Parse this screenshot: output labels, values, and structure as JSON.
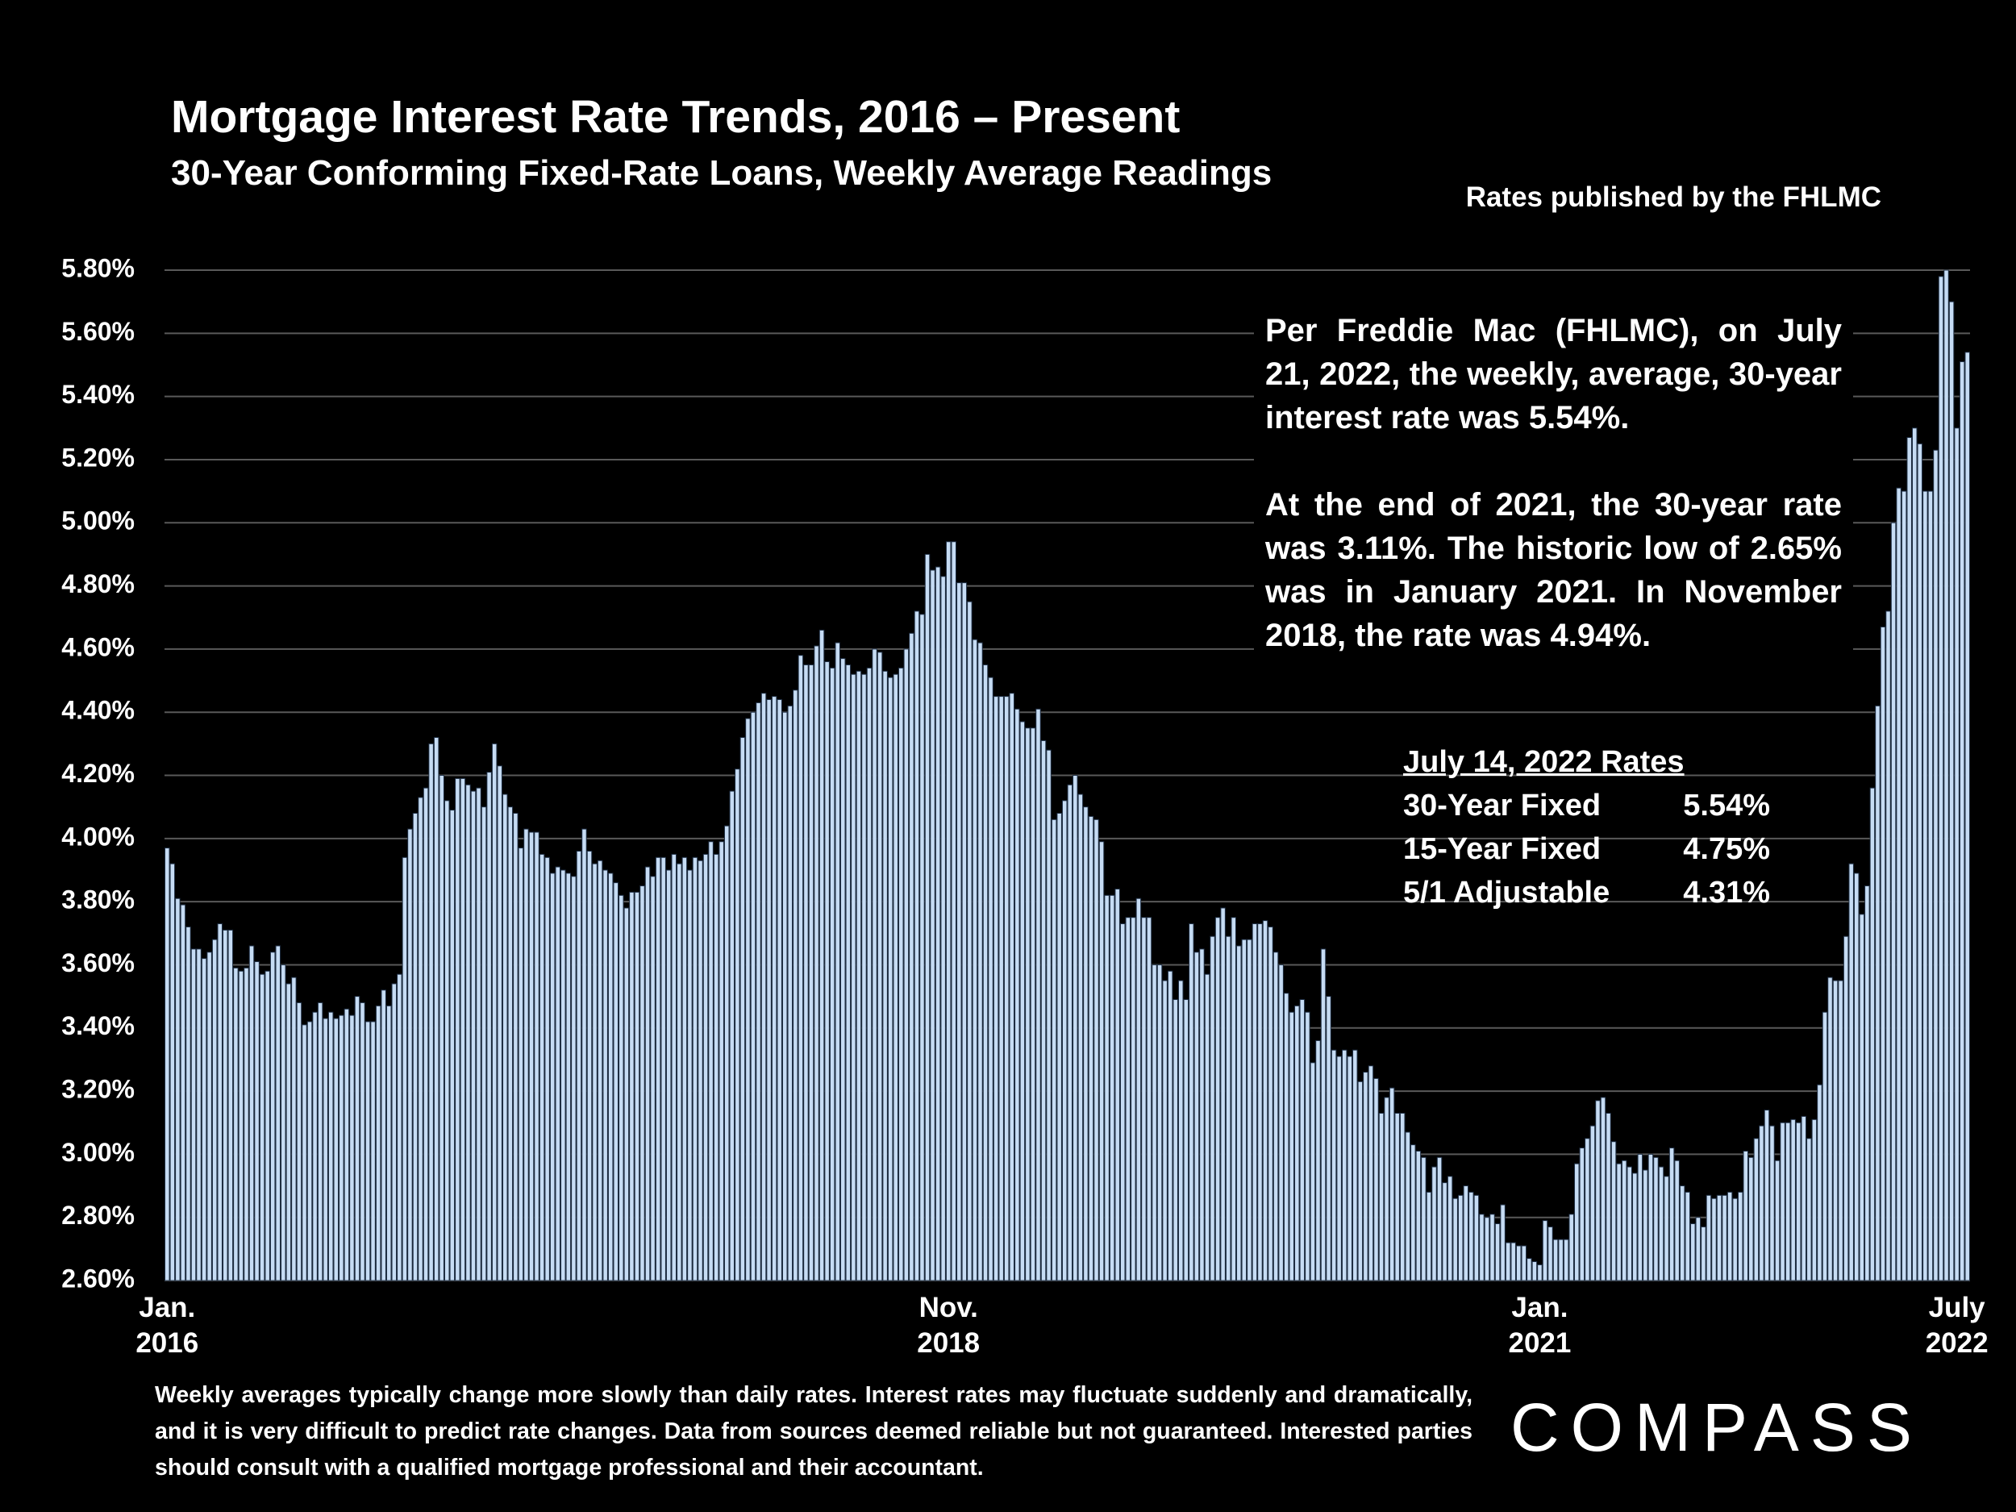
{
  "chart_data": {
    "type": "bar",
    "title": "Mortgage Interest Rate Trends, 2016 – Present",
    "subtitle": "30-Year Conforming Fixed-Rate Loans, Weekly Average Readings",
    "source": "Rates published by the FHLMC",
    "color": "#c6dcf4",
    "grid": true,
    "ylim": [
      2.6,
      5.8
    ],
    "yticks": [
      {
        "value": 2.6,
        "label": "2.60%"
      },
      {
        "value": 2.8,
        "label": "2.80%"
      },
      {
        "value": 3.0,
        "label": "3.00%"
      },
      {
        "value": 3.2,
        "label": "3.20%"
      },
      {
        "value": 3.4,
        "label": "3.40%"
      },
      {
        "value": 3.6,
        "label": "3.60%"
      },
      {
        "value": 3.8,
        "label": "3.80%"
      },
      {
        "value": 4.0,
        "label": "4.00%"
      },
      {
        "value": 4.2,
        "label": "4.20%"
      },
      {
        "value": 4.4,
        "label": "4.40%"
      },
      {
        "value": 4.6,
        "label": "4.60%"
      },
      {
        "value": 4.8,
        "label": "4.80%"
      },
      {
        "value": 5.0,
        "label": "5.00%"
      },
      {
        "value": 5.2,
        "label": "5.20%"
      },
      {
        "value": 5.4,
        "label": "5.40%"
      },
      {
        "value": 5.6,
        "label": "5.60%"
      },
      {
        "value": 5.8,
        "label": "5.80%"
      }
    ],
    "categories": [
      "Jan.\n2016",
      null,
      null,
      null,
      null,
      null,
      null,
      null,
      null,
      null,
      null,
      null,
      null,
      null,
      null,
      null,
      null,
      null,
      null,
      null,
      null,
      null,
      null,
      null,
      null,
      null,
      null,
      null,
      null,
      null,
      null,
      null,
      null,
      null,
      null,
      null,
      null,
      null,
      null,
      null,
      null,
      null,
      null,
      null,
      null,
      null,
      null,
      null,
      null,
      null,
      null,
      null,
      null,
      null,
      null,
      null,
      null,
      null,
      null,
      null,
      null,
      null,
      null,
      null,
      null,
      null,
      null,
      null,
      null,
      null,
      null,
      null,
      null,
      null,
      null,
      null,
      null,
      null,
      null,
      null,
      null,
      null,
      null,
      null,
      null,
      null,
      null,
      null,
      null,
      null,
      null,
      null,
      null,
      null,
      null,
      null,
      null,
      null,
      null,
      null,
      null,
      null,
      null,
      null,
      null,
      null,
      null,
      null,
      null,
      null,
      null,
      null,
      null,
      null,
      null,
      null,
      null,
      null,
      null,
      null,
      null,
      null,
      null,
      null,
      null,
      null,
      null,
      null,
      null,
      null,
      null,
      null,
      null,
      null,
      null,
      null,
      null,
      null,
      null,
      null,
      null,
      null,
      null,
      null,
      null,
      null,
      null,
      null,
      "Nov.\n2018",
      null,
      null,
      null,
      null,
      null,
      null,
      null,
      null,
      null,
      null,
      null,
      null,
      null,
      null,
      null,
      null,
      null,
      null,
      null,
      null,
      null,
      null,
      null,
      null,
      null,
      null,
      null,
      null,
      null,
      null,
      null,
      null,
      null,
      null,
      null,
      null,
      null,
      null,
      null,
      null,
      null,
      null,
      null,
      null,
      null,
      null,
      null,
      null,
      null,
      null,
      null,
      null,
      null,
      null,
      null,
      null,
      null,
      null,
      null,
      null,
      null,
      null,
      null,
      null,
      null,
      null,
      null,
      null,
      null,
      null,
      null,
      null,
      null,
      null,
      null,
      null,
      null,
      null,
      null,
      null,
      null,
      null,
      null,
      null,
      null,
      null,
      null,
      null,
      null,
      null,
      null,
      null,
      null,
      null,
      null,
      null,
      null,
      null,
      null,
      null,
      null,
      null,
      null,
      null,
      null,
      null,
      null,
      null,
      null,
      null,
      null,
      "Jan.\n2021",
      null,
      null,
      null,
      null,
      null,
      null,
      null,
      null,
      null,
      null,
      null,
      null,
      null,
      null,
      null,
      null,
      null,
      null,
      null,
      null,
      null,
      null,
      null,
      null,
      null,
      null,
      null,
      null,
      null,
      null,
      null,
      null,
      null,
      null,
      null,
      null,
      null,
      null,
      null,
      null,
      null,
      null,
      null,
      null,
      null,
      null,
      null,
      null,
      null,
      null,
      null,
      null,
      null,
      null,
      null,
      null,
      null,
      null,
      null,
      null,
      null,
      null,
      null,
      null,
      null,
      null,
      null,
      null,
      null,
      null,
      null,
      null,
      null,
      null,
      null,
      null,
      null,
      null,
      "July\n2022",
      null,
      null
    ],
    "values": [
      3.97,
      3.92,
      3.81,
      3.79,
      3.72,
      3.65,
      3.65,
      3.62,
      3.64,
      3.68,
      3.73,
      3.71,
      3.71,
      3.59,
      3.58,
      3.59,
      3.66,
      3.61,
      3.57,
      3.58,
      3.64,
      3.66,
      3.6,
      3.54,
      3.56,
      3.48,
      3.41,
      3.42,
      3.45,
      3.48,
      3.43,
      3.45,
      3.43,
      3.44,
      3.46,
      3.44,
      3.5,
      3.48,
      3.42,
      3.42,
      3.47,
      3.52,
      3.47,
      3.54,
      3.57,
      3.94,
      4.03,
      4.08,
      4.13,
      4.16,
      4.3,
      4.32,
      4.2,
      4.12,
      4.09,
      4.19,
      4.19,
      4.17,
      4.15,
      4.16,
      4.1,
      4.21,
      4.3,
      4.23,
      4.14,
      4.1,
      4.08,
      3.97,
      4.03,
      4.02,
      4.02,
      3.95,
      3.94,
      3.89,
      3.91,
      3.9,
      3.89,
      3.88,
      3.96,
      4.03,
      3.96,
      3.92,
      3.93,
      3.9,
      3.89,
      3.86,
      3.82,
      3.78,
      3.83,
      3.83,
      3.85,
      3.91,
      3.88,
      3.94,
      3.94,
      3.9,
      3.95,
      3.92,
      3.94,
      3.9,
      3.94,
      3.93,
      3.95,
      3.99,
      3.95,
      3.99,
      4.04,
      4.15,
      4.22,
      4.32,
      4.38,
      4.4,
      4.43,
      4.46,
      4.44,
      4.45,
      4.44,
      4.4,
      4.42,
      4.47,
      4.58,
      4.55,
      4.55,
      4.61,
      4.66,
      4.56,
      4.54,
      4.62,
      4.57,
      4.55,
      4.52,
      4.53,
      4.52,
      4.54,
      4.6,
      4.59,
      4.53,
      4.51,
      4.52,
      4.54,
      4.6,
      4.65,
      4.72,
      4.71,
      4.9,
      4.85,
      4.86,
      4.83,
      4.94,
      4.94,
      4.81,
      4.81,
      4.75,
      4.63,
      4.62,
      4.55,
      4.51,
      4.45,
      4.45,
      4.45,
      4.46,
      4.41,
      4.37,
      4.35,
      4.35,
      4.41,
      4.31,
      4.28,
      4.06,
      4.08,
      4.12,
      4.17,
      4.2,
      4.14,
      4.1,
      4.07,
      4.06,
      3.99,
      3.82,
      3.82,
      3.84,
      3.73,
      3.75,
      3.75,
      3.81,
      3.75,
      3.75,
      3.6,
      3.6,
      3.55,
      3.58,
      3.49,
      3.55,
      3.49,
      3.73,
      3.64,
      3.65,
      3.57,
      3.69,
      3.75,
      3.78,
      3.69,
      3.75,
      3.66,
      3.68,
      3.68,
      3.73,
      3.73,
      3.74,
      3.72,
      3.64,
      3.6,
      3.51,
      3.45,
      3.47,
      3.49,
      3.45,
      3.29,
      3.36,
      3.65,
      3.5,
      3.33,
      3.31,
      3.33,
      3.31,
      3.33,
      3.23,
      3.26,
      3.28,
      3.24,
      3.13,
      3.18,
      3.21,
      3.13,
      3.13,
      3.07,
      3.03,
      3.01,
      2.99,
      2.88,
      2.96,
      2.99,
      2.91,
      2.93,
      2.86,
      2.87,
      2.9,
      2.88,
      2.87,
      2.81,
      2.8,
      2.81,
      2.78,
      2.84,
      2.72,
      2.72,
      2.71,
      2.71,
      2.67,
      2.66,
      2.65,
      2.79,
      2.77,
      2.73,
      2.73,
      2.73,
      2.81,
      2.97,
      3.02,
      3.05,
      3.09,
      3.17,
      3.18,
      3.13,
      3.04,
      2.97,
      2.98,
      2.96,
      2.94,
      3.0,
      2.95,
      3.0,
      2.99,
      2.96,
      2.93,
      3.02,
      2.98,
      2.9,
      2.88,
      2.78,
      2.8,
      2.77,
      2.87,
      2.86,
      2.87,
      2.87,
      2.88,
      2.86,
      2.88,
      3.01,
      2.99,
      3.05,
      3.09,
      3.14,
      3.09,
      2.98,
      3.1,
      3.1,
      3.11,
      3.1,
      3.12,
      3.05,
      3.11,
      3.22,
      3.45,
      3.56,
      3.55,
      3.55,
      3.69,
      3.92,
      3.89,
      3.76,
      3.85,
      4.16,
      4.42,
      4.67,
      4.72,
      5.0,
      5.11,
      5.1,
      5.27,
      5.3,
      5.25,
      5.1,
      5.1,
      5.23,
      5.78,
      5.8,
      5.7,
      5.3,
      5.51,
      5.54
    ]
  },
  "notes": [
    "Per Freddie Mac (FHLMC), on July 21, 2022, the weekly, average, 30-year interest rate was 5.54%.",
    "At the end of 2021, the 30-year rate was 3.11%. The historic low of 2.65% was in January 2021. In November 2018, the rate was 4.94%."
  ],
  "rates_table": {
    "title": "July 14, 2022 Rates",
    "rows": [
      [
        "30-Year Fixed",
        "5.54%"
      ],
      [
        "15-Year Fixed",
        "4.75%"
      ],
      [
        "5/1 Adjustable",
        "4.31%"
      ]
    ]
  },
  "footer": "Weekly averages typically change more slowly than daily rates. Interest rates may fluctuate suddenly and dramatically, and it is very difficult to predict rate changes. Data from sources deemed reliable but not guaranteed. Interested parties should consult with a qualified mortgage professional and their accountant.",
  "logo": "COMPASS"
}
